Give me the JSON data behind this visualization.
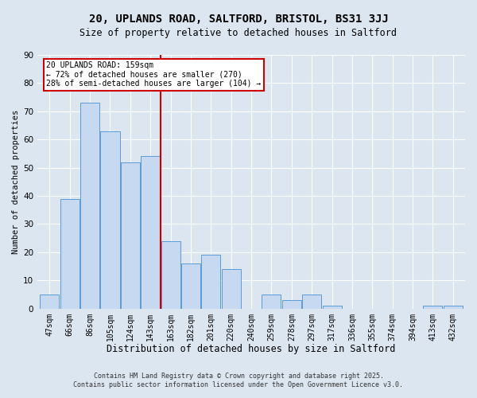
{
  "title": "20, UPLANDS ROAD, SALTFORD, BRISTOL, BS31 3JJ",
  "subtitle": "Size of property relative to detached houses in Saltford",
  "xlabel": "Distribution of detached houses by size in Saltford",
  "ylabel": "Number of detached properties",
  "categories": [
    "47sqm",
    "66sqm",
    "86sqm",
    "105sqm",
    "124sqm",
    "143sqm",
    "163sqm",
    "182sqm",
    "201sqm",
    "220sqm",
    "240sqm",
    "259sqm",
    "278sqm",
    "297sqm",
    "317sqm",
    "336sqm",
    "355sqm",
    "374sqm",
    "394sqm",
    "413sqm",
    "432sqm"
  ],
  "values": [
    5,
    39,
    73,
    63,
    52,
    54,
    24,
    16,
    19,
    14,
    0,
    5,
    3,
    5,
    1,
    0,
    0,
    0,
    0,
    1,
    1
  ],
  "bar_color": "#c6d9f1",
  "bar_edge_color": "#5b9bd5",
  "vline_after_index": 5,
  "vline_color": "#cc0000",
  "annotation_title": "20 UPLANDS ROAD: 159sqm",
  "annotation_line1": "← 72% of detached houses are smaller (270)",
  "annotation_line2": "28% of semi-detached houses are larger (104) →",
  "annotation_box_color": "#ffffff",
  "annotation_box_edge": "#cc0000",
  "ylim": [
    0,
    90
  ],
  "yticks": [
    0,
    10,
    20,
    30,
    40,
    50,
    60,
    70,
    80,
    90
  ],
  "footer1": "Contains HM Land Registry data © Crown copyright and database right 2025.",
  "footer2": "Contains public sector information licensed under the Open Government Licence v3.0.",
  "bg_color": "#dce6f1",
  "title_fontsize": 10,
  "subtitle_fontsize": 8.5,
  "xlabel_fontsize": 8.5,
  "ylabel_fontsize": 7.5,
  "tick_fontsize": 7,
  "ytick_fontsize": 7.5,
  "annotation_fontsize": 7,
  "footer_fontsize": 6
}
